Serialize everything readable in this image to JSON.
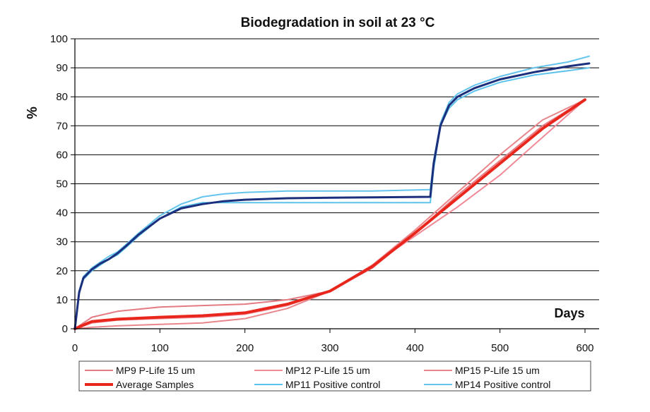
{
  "chart_data": {
    "type": "line",
    "title": "Biodegradation in soil at 23 °C",
    "xlabel": "Days",
    "ylabel": "%",
    "xlim": [
      0,
      600
    ],
    "ylim": [
      0,
      100
    ],
    "xticks": [
      0,
      100,
      200,
      300,
      400,
      500,
      600
    ],
    "yticks": [
      0,
      10,
      20,
      30,
      40,
      50,
      60,
      70,
      80,
      90,
      100
    ],
    "grid": "horizontal",
    "legend_position": "bottom",
    "series": [
      {
        "name": "MP9 P-Life 15 um",
        "color": "#e47a82",
        "width": 2,
        "x": [
          0,
          20,
          50,
          100,
          150,
          200,
          250,
          300,
          350,
          400,
          450,
          500,
          550,
          600
        ],
        "y": [
          0,
          4,
          6,
          7.5,
          8,
          8.5,
          10,
          13,
          21,
          33,
          46,
          58,
          70,
          79
        ]
      },
      {
        "name": "MP12 P-Life 15 um",
        "color": "#f08a96",
        "width": 2,
        "x": [
          0,
          20,
          50,
          100,
          150,
          200,
          250,
          300,
          350,
          400,
          450,
          500,
          550,
          600
        ],
        "y": [
          0,
          2,
          3,
          3.5,
          4,
          5,
          8,
          13,
          22,
          32,
          42,
          53,
          66,
          79
        ]
      },
      {
        "name": "MP15 P-Life 15 um",
        "color": "#e8868c",
        "width": 2,
        "x": [
          0,
          20,
          50,
          100,
          150,
          200,
          250,
          300,
          350,
          400,
          450,
          500,
          550,
          600
        ],
        "y": [
          0,
          0.5,
          1,
          1.5,
          2,
          3.5,
          7,
          13,
          22,
          34,
          47,
          60,
          72,
          79
        ]
      },
      {
        "name": "Average Samples",
        "color": "#e8261c",
        "width": 4,
        "x": [
          0,
          20,
          50,
          100,
          150,
          200,
          250,
          300,
          350,
          400,
          450,
          500,
          550,
          600
        ],
        "y": [
          0,
          2.5,
          3.3,
          4,
          4.5,
          5.5,
          8.5,
          13,
          21.5,
          33,
          45,
          57,
          69,
          79
        ]
      },
      {
        "name": "MP11 Positive control",
        "color": "#5bc2ec",
        "width": 2,
        "x": [
          0,
          5,
          10,
          20,
          30,
          40,
          50,
          60,
          75,
          100,
          125,
          150,
          175,
          200,
          250,
          300,
          350,
          418,
          422,
          430,
          440,
          450,
          470,
          500,
          540,
          580,
          605
        ],
        "y": [
          0,
          12,
          17,
          20,
          22,
          24,
          25.5,
          28,
          32,
          38,
          42,
          43.5,
          43.5,
          43.5,
          43.5,
          43.5,
          43.5,
          43.5,
          55,
          70,
          76,
          79,
          82,
          85,
          87.5,
          89,
          90
        ]
      },
      {
        "name": "MP14 Positive control",
        "color": "#64c4ee",
        "width": 2,
        "x": [
          0,
          5,
          10,
          20,
          30,
          40,
          50,
          60,
          75,
          100,
          125,
          150,
          175,
          200,
          250,
          300,
          350,
          418,
          422,
          430,
          440,
          450,
          470,
          500,
          540,
          580,
          605
        ],
        "y": [
          0,
          13,
          18,
          21,
          23,
          25,
          26.5,
          29,
          33,
          39,
          43,
          45.5,
          46.5,
          47,
          47.5,
          47.5,
          47.5,
          48,
          58,
          71,
          78,
          81,
          84,
          87,
          90,
          92,
          94
        ]
      },
      {
        "name": "Positive controls average",
        "color": "#1c2f7c",
        "width": 3,
        "legend": false,
        "x": [
          0,
          5,
          10,
          20,
          30,
          40,
          50,
          60,
          75,
          100,
          125,
          150,
          175,
          200,
          250,
          300,
          350,
          418,
          422,
          430,
          440,
          450,
          470,
          500,
          540,
          580,
          605
        ],
        "y": [
          0,
          12.5,
          17.5,
          20.5,
          22.5,
          24,
          26,
          28.5,
          32.5,
          38,
          41.5,
          43,
          44,
          44.5,
          45,
          45.2,
          45.3,
          45.5,
          57,
          70,
          77,
          80,
          83,
          86,
          88.5,
          90.5,
          91.5
        ]
      }
    ]
  }
}
